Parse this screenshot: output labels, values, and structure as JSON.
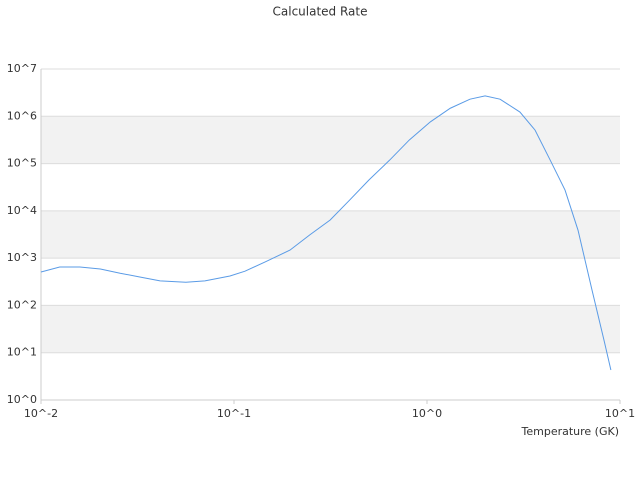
{
  "chart_data": {
    "type": "line",
    "title": "Calculated Rate",
    "x_label": "Temperature (GK)",
    "xlog": true,
    "ylog": true,
    "grid": true,
    "xlim": [
      0.01,
      10
    ],
    "ylim": [
      1,
      10000000
    ],
    "xticks": [
      {
        "value": 0.01,
        "label": "10^-2"
      },
      {
        "value": 0.1,
        "label": "10^-1"
      },
      {
        "value": 1,
        "label": "10^0"
      },
      {
        "value": 10,
        "label": "10^1"
      }
    ],
    "yticks": [
      {
        "value": 1,
        "label": "10^0"
      },
      {
        "value": 10,
        "label": "10^1"
      },
      {
        "value": 100,
        "label": "10^2"
      },
      {
        "value": 1000,
        "label": "10^3"
      },
      {
        "value": 10000,
        "label": "10^4"
      },
      {
        "value": 100000,
        "label": "10^5"
      },
      {
        "value": 1000000,
        "label": "10^6"
      },
      {
        "value": 10000000,
        "label": "10^7"
      }
    ],
    "x": [
      0.01,
      0.0125,
      0.0159,
      0.0203,
      0.0257,
      0.0325,
      0.0414,
      0.0563,
      0.0707,
      0.0953,
      0.114,
      0.145,
      0.195,
      0.247,
      0.315,
      0.398,
      0.5,
      0.64,
      0.81,
      1.04,
      1.32,
      1.67,
      2.0,
      2.39,
      3.03,
      3.63,
      4.35,
      5.19,
      6.06,
      7.16,
      8.26,
      8.97
    ],
    "series": [
      {
        "color": "#5a9be6",
        "values": [
          510,
          650,
          650,
          590,
          480,
          400,
          330,
          310,
          330,
          420,
          530,
          830,
          1480,
          3100,
          6400,
          17000,
          45000,
          118000,
          316000,
          760000,
          1480000,
          2300000,
          2700000,
          2300000,
          1230000,
          510000,
          118000,
          27500,
          3900,
          212,
          18.5,
          4.3
        ]
      }
    ]
  }
}
